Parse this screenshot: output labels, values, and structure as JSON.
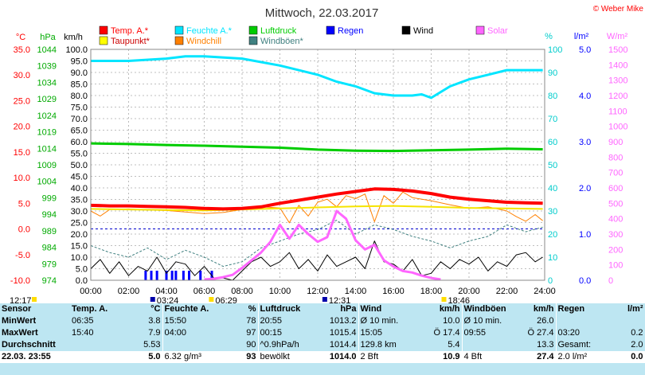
{
  "header": {
    "title": "Mittwoch, 22.03.2017",
    "credit": "© Weber Mike"
  },
  "colors": {
    "temp": "#ff0000",
    "humidity": "#00e5ff",
    "pressure": "#00cc00",
    "rain": "#0000ff",
    "wind": "#000000",
    "solar": "#ff66ff",
    "dewpoint": "#ffff00",
    "windchill": "#ff8000",
    "gusts": "#408080",
    "stats_bg": "#bde6f2"
  },
  "chart_data": {
    "type": "line",
    "legend": [
      {
        "key": "temp",
        "label": "Temp. A.*",
        "color": "#ff0000"
      },
      {
        "key": "humidity",
        "label": "Feuchte A.*",
        "color": "#00e5ff"
      },
      {
        "key": "pressure",
        "label": "Luftdruck",
        "color": "#00cc00"
      },
      {
        "key": "rain",
        "label": "Regen",
        "color": "#0000ff"
      },
      {
        "key": "wind",
        "label": "Wind",
        "color": "#000000"
      },
      {
        "key": "solar",
        "label": "Solar",
        "color": "#ff66ff"
      },
      {
        "key": "dewpoint",
        "label": "Taupunkt*",
        "color": "#ffff00"
      },
      {
        "key": "windchill",
        "label": "Windchill",
        "color": "#ff8000"
      },
      {
        "key": "gusts",
        "label": "Windböen*",
        "color": "#408080"
      }
    ],
    "axes": {
      "temp": {
        "label": "°C",
        "min": -10,
        "max": 35,
        "ticks": [
          "35.0",
          "30.0",
          "25.0",
          "20.0",
          "15.0",
          "10.0",
          "5.0",
          "0.0",
          "-5.0",
          "-10.0"
        ],
        "color": "#ff0000"
      },
      "pressure": {
        "label": "hPa",
        "min": 974,
        "max": 1044,
        "ticks": [
          "1044",
          "1039",
          "1034",
          "1029",
          "1024",
          "1019",
          "1014",
          "1009",
          "1004",
          "999",
          "994",
          "989",
          "984",
          "979",
          "974"
        ],
        "color": "#00cc00"
      },
      "wind": {
        "label": "km/h",
        "min": 0,
        "max": 100,
        "ticks": [
          "100.0",
          "95.0",
          "90.0",
          "85.0",
          "80.0",
          "75.0",
          "70.0",
          "65.0",
          "60.0",
          "55.0",
          "50.0",
          "45.0",
          "40.0",
          "35.0",
          "30.0",
          "25.0",
          "20.0",
          "15.0",
          "10.0",
          "5.0",
          "0.0"
        ],
        "color": "#000000"
      },
      "humidity": {
        "label": "%",
        "min": 0,
        "max": 100,
        "ticks": [
          "100",
          "90",
          "80",
          "70",
          "60",
          "50",
          "40",
          "30",
          "20",
          "10",
          "0"
        ],
        "color": "#00e5ff"
      },
      "rain": {
        "label": "l/m²",
        "min": 0,
        "max": 5,
        "ticks": [
          "5.0",
          "4.0",
          "3.0",
          "2.0",
          "1.0",
          "0.0"
        ],
        "color": "#0000ff"
      },
      "solar": {
        "label": "W/m²",
        "min": 0,
        "max": 1500,
        "ticks": [
          "1500",
          "1400",
          "1300",
          "1200",
          "1100",
          "1000",
          "900",
          "800",
          "700",
          "600",
          "500",
          "400",
          "300",
          "200",
          "100",
          "0"
        ],
        "color": "#ff66ff"
      },
      "x": {
        "ticks": [
          "00:00",
          "02:00",
          "04:00",
          "06:00",
          "08:00",
          "10:00",
          "12:00",
          "14:00",
          "16:00",
          "18:00",
          "20:00",
          "22:00",
          "24:00"
        ],
        "min": 0,
        "max": 24
      }
    },
    "series": {
      "temp": {
        "x": [
          0,
          1,
          2,
          3,
          4,
          5,
          6,
          7,
          8,
          9,
          10,
          11,
          12,
          13,
          14,
          15,
          16,
          17,
          18,
          19,
          20,
          21,
          22,
          23,
          23.9
        ],
        "values": [
          4.6,
          4.5,
          4.5,
          4.4,
          4.3,
          4.2,
          4.0,
          3.9,
          4.0,
          4.3,
          5.0,
          5.6,
          6.2,
          6.8,
          7.3,
          7.8,
          7.7,
          7.4,
          6.9,
          6.2,
          5.8,
          5.5,
          5.2,
          5.1,
          5.0
        ]
      },
      "dewpoint": {
        "x": [
          0,
          2,
          4,
          6,
          8,
          10,
          12,
          14,
          16,
          18,
          20,
          22,
          23.9
        ],
        "values": [
          3.9,
          3.8,
          3.7,
          3.6,
          3.8,
          4.0,
          4.2,
          4.4,
          4.5,
          4.3,
          4.1,
          4.0,
          3.9
        ]
      },
      "windchill": {
        "x": [
          0,
          0.5,
          1,
          2,
          3,
          4,
          5,
          6,
          7,
          8,
          9,
          10,
          10.5,
          11,
          11.5,
          12,
          12.5,
          13,
          13.5,
          14,
          14.5,
          15,
          15.5,
          16,
          16.5,
          17,
          18,
          19,
          20,
          21,
          22,
          22.5,
          23,
          23.5,
          23.9
        ],
        "values": [
          3.5,
          2.5,
          3.8,
          3.9,
          3.7,
          3.6,
          3.3,
          3.0,
          3.2,
          3.8,
          4.3,
          4.1,
          1.2,
          4.6,
          2.5,
          5.2,
          5.8,
          4.3,
          6.5,
          5.9,
          6.8,
          1.4,
          6.5,
          5.0,
          7.2,
          6.1,
          5.5,
          4.7,
          4.0,
          4.3,
          3.5,
          2.4,
          1.5,
          2.8,
          1.6
        ]
      },
      "humidity": {
        "x": [
          0,
          2,
          4,
          5,
          6,
          8,
          10,
          12,
          13,
          14,
          15,
          16,
          17,
          17.5,
          18,
          19,
          20,
          21,
          22,
          23,
          23.9
        ],
        "values": [
          95,
          95,
          96,
          97,
          97,
          96,
          93,
          89,
          86,
          84,
          81,
          80,
          80,
          80.5,
          79,
          84,
          87,
          89,
          91,
          91,
          91
        ]
      },
      "pressure": {
        "x": [
          0,
          2,
          4,
          6,
          8,
          10,
          12,
          14,
          16,
          18,
          20,
          22,
          23,
          23.9
        ],
        "values": [
          1015.5,
          1015.3,
          1015.0,
          1014.8,
          1014.5,
          1014.2,
          1013.6,
          1013.3,
          1013.2,
          1013.4,
          1013.6,
          1013.9,
          1013.8,
          1013.7
        ]
      },
      "wind": {
        "x": [
          0,
          0.5,
          1,
          1.5,
          2,
          2.5,
          3,
          3.5,
          4,
          4.5,
          5,
          5.5,
          6,
          6.5,
          7,
          7.5,
          8,
          8.5,
          9,
          9.5,
          10,
          10.5,
          11,
          11.5,
          12,
          12.5,
          13,
          13.5,
          14,
          14.5,
          15,
          15.5,
          16,
          16.5,
          17,
          17.5,
          18,
          18.5,
          19,
          19.5,
          20,
          20.5,
          21,
          21.5,
          22,
          22.5,
          23,
          23.5,
          23.9
        ],
        "values": [
          5,
          9,
          3,
          8,
          2,
          6,
          4,
          10,
          3,
          8,
          7,
          2,
          6,
          1,
          1,
          0,
          4,
          8,
          10,
          6,
          8,
          12,
          5,
          9,
          4,
          11,
          6,
          8,
          10,
          5,
          17,
          8,
          7,
          4,
          9,
          2,
          3,
          8,
          5,
          9,
          7,
          10,
          4,
          8,
          6,
          11,
          12,
          8,
          10
        ]
      },
      "gusts": {
        "x": [
          0,
          1,
          2,
          3,
          4,
          5,
          6,
          7,
          8,
          9,
          10,
          11,
          12,
          13,
          14,
          15,
          16,
          17,
          18,
          19,
          20,
          21,
          22,
          23,
          23.9
        ],
        "values": [
          15,
          12,
          10,
          14,
          9,
          13,
          10,
          6,
          8,
          14,
          17,
          20,
          22,
          26,
          20,
          24,
          22,
          19,
          17,
          14,
          17,
          19,
          24,
          21,
          23
        ]
      },
      "solar": {
        "x": [
          6,
          6.5,
          7,
          7.5,
          8,
          8.5,
          9,
          9.5,
          10,
          10.5,
          11,
          11.5,
          12,
          12.5,
          13,
          13.5,
          14,
          14.5,
          15,
          15.5,
          16,
          16.5,
          17,
          17.5,
          18,
          18.5
        ],
        "values": [
          5,
          10,
          20,
          35,
          80,
          130,
          180,
          250,
          360,
          270,
          360,
          300,
          250,
          280,
          450,
          400,
          260,
          200,
          230,
          130,
          90,
          60,
          50,
          30,
          15,
          5
        ]
      },
      "rain_hours": [
        2.9,
        3.2,
        3.5,
        4.0,
        4.3,
        4.5,
        4.9,
        5.2,
        5.8,
        6.4
      ]
    },
    "x_markers": [
      {
        "label": "12:17",
        "x": 0
      },
      {
        "label": "03:24",
        "x": 3.4
      },
      {
        "label": "06:29",
        "x": 6.5
      },
      {
        "label": "12:31",
        "x": 12.5
      },
      {
        "label": "18:46",
        "x": 18.8
      }
    ]
  },
  "stats": {
    "headers": [
      "Sensor",
      "Temp. A.",
      "°C",
      "Feuchte A.",
      "%",
      "Luftdruck",
      "hPa",
      "Wind",
      "km/h",
      "Windböen",
      "km/h",
      "Regen",
      "l/m²"
    ],
    "rows": [
      [
        "MinWert",
        "06:35",
        "3.8",
        "15:50",
        "78",
        "20:55",
        "1013.2",
        "Ø 10 min.",
        "10.0",
        "Ø 10 min.",
        "26.0",
        "",
        ""
      ],
      [
        "MaxWert",
        "15:40",
        "7.9",
        "04:00",
        "97",
        "00:15",
        "1015.4",
        "15:05",
        "Ö 17.4",
        "09:55",
        "Ö 27.4",
        "03:20",
        "0.2"
      ],
      [
        "Durchschnitt",
        "",
        "5.53",
        "",
        "90",
        "^0.9hPa/h",
        "1014.4",
        "129.8 km",
        "5.4",
        "",
        "13.3",
        "Gesamt:",
        "2.0"
      ],
      [
        "22.03. 23:55",
        "",
        "5.0",
        "6.32 g/m³",
        "93",
        "bewölkt",
        "1014.0",
        "2 Bft",
        "10.9",
        "4 Bft",
        "27.4",
        "2.0 l/m²",
        "0.0"
      ]
    ]
  }
}
